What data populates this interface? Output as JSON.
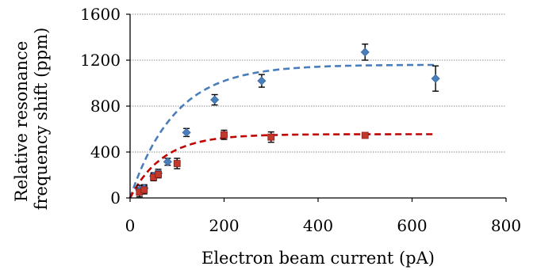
{
  "chart_data": {
    "type": "scatter",
    "title": "",
    "xlabel": "Electron beam current (pA)",
    "ylabel_lines": [
      "Relative resonance",
      "frequency shift (ppm)"
    ],
    "xlim": [
      0,
      800
    ],
    "ylim": [
      0,
      1600
    ],
    "xticks": [
      0,
      200,
      400,
      600,
      800
    ],
    "yticks": [
      0,
      400,
      800,
      1200,
      1600
    ],
    "xtick_labels": [
      "0",
      "200",
      "400",
      "600",
      "800"
    ],
    "ytick_labels": [
      "0",
      "400",
      "800",
      "1200",
      "1600"
    ],
    "grid": "horizontal",
    "series": [
      {
        "marker": "diamond",
        "color": "#4a7ebb",
        "points": [
          {
            "x": 20,
            "y": 70,
            "err": 40
          },
          {
            "x": 30,
            "y": 85,
            "err": 30
          },
          {
            "x": 50,
            "y": 190,
            "err": 30
          },
          {
            "x": 60,
            "y": 215,
            "err": 35
          },
          {
            "x": 80,
            "y": 315,
            "err": 30
          },
          {
            "x": 120,
            "y": 570,
            "err": 35
          },
          {
            "x": 180,
            "y": 855,
            "err": 45
          },
          {
            "x": 280,
            "y": 1020,
            "err": 55
          },
          {
            "x": 500,
            "y": 1270,
            "err": 70
          },
          {
            "x": 650,
            "y": 1040,
            "err": 110
          }
        ],
        "fit": {
          "color": "#4a7ebb",
          "x_end": 650,
          "ymax": 1160,
          "tau": 95
        }
      },
      {
        "marker": "square",
        "color": "#c0392b",
        "points": [
          {
            "x": 20,
            "y": 50,
            "err": 40
          },
          {
            "x": 30,
            "y": 70,
            "err": 35
          },
          {
            "x": 50,
            "y": 180,
            "err": 30
          },
          {
            "x": 60,
            "y": 205,
            "err": 30
          },
          {
            "x": 100,
            "y": 300,
            "err": 45
          },
          {
            "x": 200,
            "y": 550,
            "err": 40
          },
          {
            "x": 300,
            "y": 530,
            "err": 45
          },
          {
            "x": 500,
            "y": 545,
            "err": 20
          }
        ],
        "fit": {
          "color": "#c00000",
          "x_end": 650,
          "ymax": 555,
          "tau": 70
        }
      }
    ]
  }
}
